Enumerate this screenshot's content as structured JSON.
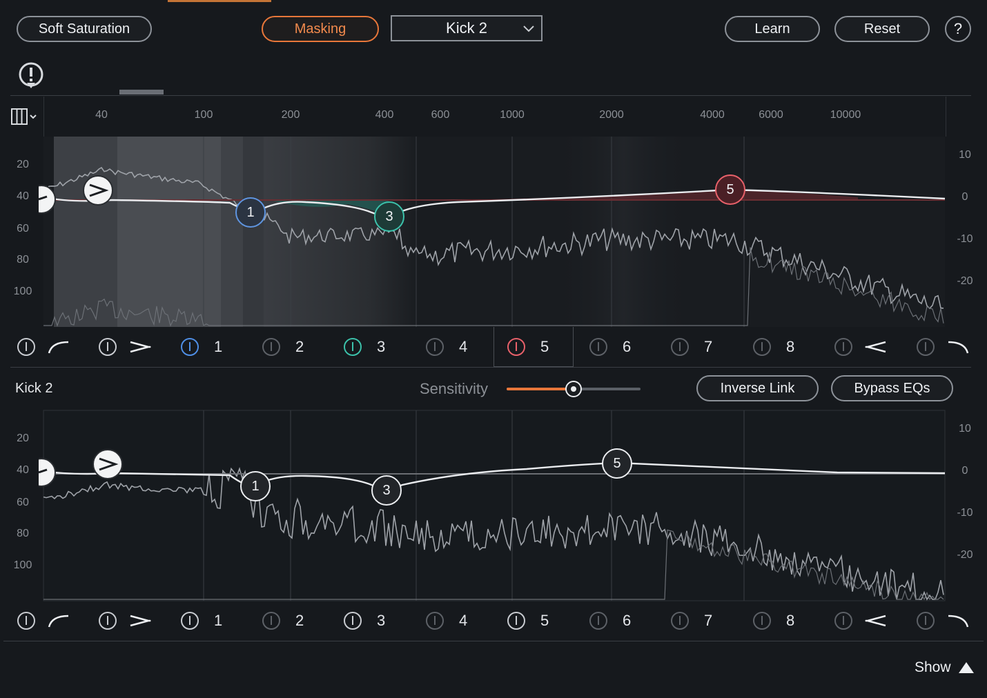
{
  "header": {
    "soft_saturation": "Soft Saturation",
    "masking": "Masking",
    "source": "Kick 2",
    "learn": "Learn",
    "reset": "Reset",
    "help": "?"
  },
  "freq_labels": [
    "40",
    "100",
    "200",
    "400",
    "600",
    "1000",
    "2000",
    "4000",
    "6000",
    "10000"
  ],
  "level_labels": [
    "20",
    "40",
    "60",
    "80",
    "100"
  ],
  "gain_labels": [
    "10",
    "0",
    "-10",
    "-20"
  ],
  "bands": [
    "1",
    "2",
    "3",
    "4",
    "5",
    "6",
    "7",
    "8"
  ],
  "nodes_top": [
    "1",
    "3",
    "5"
  ],
  "nodes_bottom": [
    "1",
    "3",
    "5"
  ],
  "lower": {
    "track_name": "Kick 2",
    "sensitivity_label": "Sensitivity",
    "sensitivity_value": 0.5,
    "inverse_link": "Inverse Link",
    "bypass_eqs": "Bypass EQs"
  },
  "footer": {
    "show": "Show"
  },
  "colors": {
    "accent": "#e8773a",
    "band1": "#4f8fe6",
    "band3": "#3cc2ab",
    "band5": "#e8616a"
  },
  "icons": [
    "alert-icon",
    "column-view-icon",
    "chevron-down-icon",
    "power-icon",
    "high-pass-icon",
    "low-shelf-icon",
    "high-shelf-icon",
    "low-pass-icon",
    "triangle-up-icon"
  ]
}
